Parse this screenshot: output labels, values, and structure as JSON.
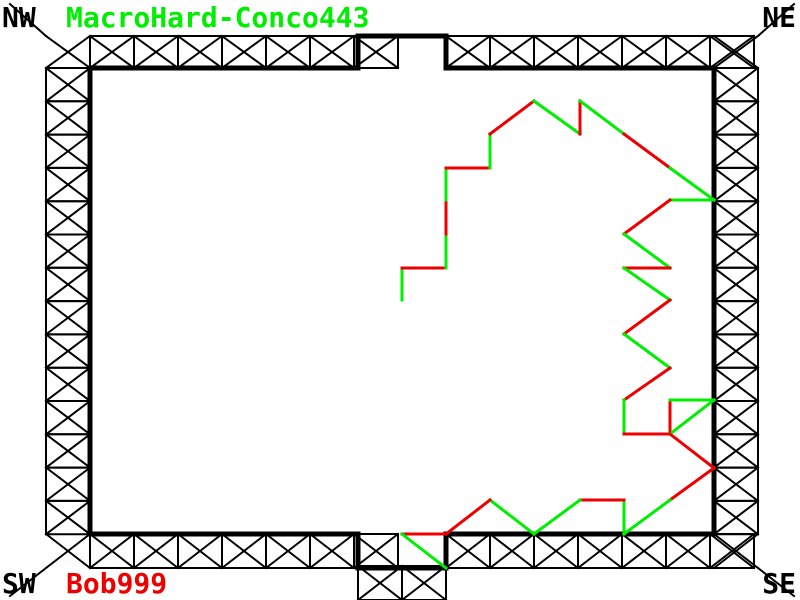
{
  "corners": {
    "nw": "NW",
    "ne": "NE",
    "sw": "SW",
    "se": "SE"
  },
  "players": {
    "top": {
      "name": "MacroHard-Conco443",
      "color": "#00ee00"
    },
    "bottom": {
      "name": "Bob999",
      "color": "#ee0000"
    }
  },
  "colors": {
    "wall": "#000000",
    "green": "#00ee00",
    "red": "#ee0000",
    "background": "#ffffff"
  },
  "icons": {
    "bracing": "cross-brace-icon"
  }
}
